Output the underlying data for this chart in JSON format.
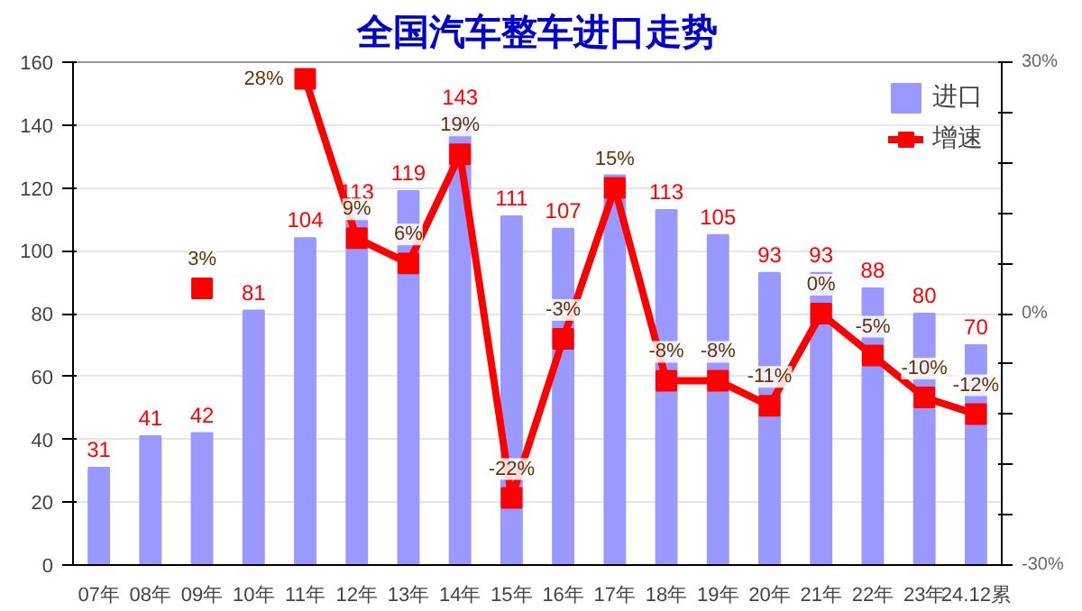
{
  "chart_data": {
    "type": "bar",
    "title": "全国汽车整车进口走势",
    "categories": [
      "07年",
      "08年",
      "09年",
      "10年",
      "11年",
      "12年",
      "13年",
      "14年",
      "15年",
      "16年",
      "17年",
      "18年",
      "19年",
      "20年",
      "21年",
      "22年",
      "23年",
      "24.12累"
    ],
    "series": [
      {
        "name": "进口",
        "color": "#9999ff",
        "values": [
          31,
          41,
          42,
          81,
          104,
          113,
          119,
          143,
          111,
          107,
          124,
          113,
          105,
          93,
          93,
          88,
          80,
          70
        ],
        "value_labels": [
          "31",
          "41",
          "42",
          "81",
          "104",
          "113",
          "119",
          "143",
          "111",
          "107",
          null,
          "113",
          "105",
          "93",
          "93",
          "88",
          "80",
          "70"
        ]
      },
      {
        "name": "增速",
        "type": "line",
        "axis": "y2",
        "color": "#ff0000",
        "values": [
          null,
          null,
          3,
          null,
          28,
          9,
          6,
          19,
          -22,
          -3,
          15,
          -8,
          -8,
          -11,
          0,
          -5,
          -10,
          -12
        ],
        "value_labels": [
          null,
          null,
          "3%",
          null,
          "28%",
          "9%",
          "6%",
          "19%",
          "-22%",
          "-3%",
          "15%",
          "-8%",
          "-8%",
          "-11%",
          "0%",
          "-5%",
          "-10%",
          "-12%"
        ]
      }
    ],
    "ylim": [
      0,
      160
    ],
    "yticks": [
      0,
      20,
      40,
      60,
      80,
      100,
      120,
      140,
      160
    ],
    "y2lim": [
      -30,
      30
    ],
    "y2ticks": [
      {
        "value": -30,
        "label": "-30%"
      },
      {
        "value": -24,
        "label": null
      },
      {
        "value": -18,
        "label": null
      },
      {
        "value": -12,
        "label": null
      },
      {
        "value": -6,
        "label": null
      },
      {
        "value": 0,
        "label": "0%"
      },
      {
        "value": 6,
        "label": null
      },
      {
        "value": 12,
        "label": null
      },
      {
        "value": 18,
        "label": null
      },
      {
        "value": 24,
        "label": null
      },
      {
        "value": 30,
        "label": "30%"
      }
    ],
    "grid": "y",
    "legend": "top right",
    "marker": "square",
    "line_style": "solid"
  }
}
